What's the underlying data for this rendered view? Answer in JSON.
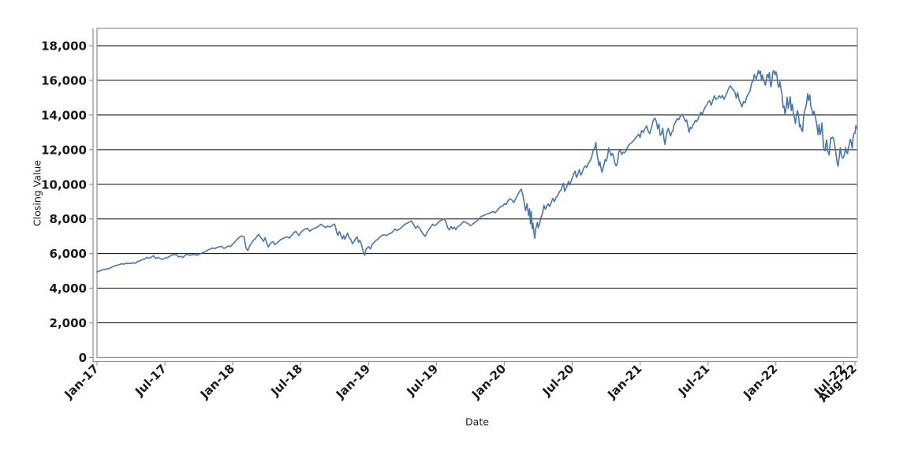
{
  "chart_data": {
    "type": "line",
    "title": "",
    "xlabel": "Date",
    "ylabel": "Closing Value",
    "xlim": [
      2017.0,
      2022.6
    ],
    "ylim": [
      0,
      19000
    ],
    "grid": "horizontal, black, at every 2000",
    "legend": "none",
    "colors": {
      "line": "#4575b2",
      "frame": "#959595",
      "gridline": "#000000",
      "tick_label": "#1a1a1a",
      "axis_title": "#1a1a1a",
      "background": "#ffffff"
    },
    "y_ticks": [
      {
        "v": 0,
        "label": "0"
      },
      {
        "v": 2000,
        "label": "2,000"
      },
      {
        "v": 4000,
        "label": "4,000"
      },
      {
        "v": 6000,
        "label": "6,000"
      },
      {
        "v": 8000,
        "label": "8,000"
      },
      {
        "v": 10000,
        "label": "10,000"
      },
      {
        "v": 12000,
        "label": "12,000"
      },
      {
        "v": 14000,
        "label": "14,000"
      },
      {
        "v": 16000,
        "label": "16,000"
      },
      {
        "v": 18000,
        "label": "18,000"
      }
    ],
    "x_ticks": [
      {
        "t": 2017.0,
        "label": "Jan-17"
      },
      {
        "t": 2017.5,
        "label": "Jul-17"
      },
      {
        "t": 2018.0,
        "label": "Jan-18"
      },
      {
        "t": 2018.5,
        "label": "Jul-18"
      },
      {
        "t": 2019.0,
        "label": "Jan-19"
      },
      {
        "t": 2019.5,
        "label": "Jul-19"
      },
      {
        "t": 2020.0,
        "label": "Jan-20"
      },
      {
        "t": 2020.5,
        "label": "Jul-20"
      },
      {
        "t": 2021.0,
        "label": "Jan-21"
      },
      {
        "t": 2021.5,
        "label": "Jul-21"
      },
      {
        "t": 2022.0,
        "label": "Jan-22"
      },
      {
        "t": 2022.5,
        "label": "Jul-22"
      },
      {
        "t": 2022.583,
        "label": "Aug-22"
      }
    ],
    "series": {
      "name": "closing-value",
      "start_year": 2017,
      "note": "samples_by_month[i] holds closing-value samples spread evenly across month i (0 = Jan 2017); final month spreads to xlim end",
      "samples_by_month": [
        [
          4940,
          4990,
          5040,
          5090,
          5100
        ],
        [
          5120,
          5180,
          5250,
          5300,
          5330
        ],
        [
          5370,
          5410,
          5390,
          5440,
          5430
        ],
        [
          5430,
          5470,
          5440,
          5550,
          5580
        ],
        [
          5650,
          5680,
          5780,
          5730,
          5790
        ],
        [
          5880,
          5710,
          5790,
          5700,
          5660
        ],
        [
          5740,
          5760,
          5830,
          5920,
          5930
        ],
        [
          5950,
          5810,
          5840,
          5770,
          5910
        ],
        [
          5960,
          5900,
          5930,
          5960,
          5900
        ],
        [
          5950,
          6010,
          6070,
          6110,
          6210
        ],
        [
          6260,
          6320,
          6280,
          6350,
          6390
        ],
        [
          6420,
          6300,
          6350,
          6440,
          6400
        ],
        [
          6550,
          6690,
          6830,
          6950,
          7020
        ],
        [
          6950,
          6340,
          6170,
          6440,
          6610,
          6780
        ],
        [
          6860,
          7000,
          7110,
          6960,
          6860,
          6700,
          6920
        ],
        [
          6600,
          6380,
          6550,
          6640,
          6690,
          6510,
          6590
        ],
        [
          6650,
          6790,
          6860,
          6920,
          6970
        ],
        [
          6890,
          7010,
          7120,
          7220,
          7290,
          7140,
          7050
        ],
        [
          7210,
          7330,
          7420,
          7460,
          7290
        ],
        [
          7390,
          7450,
          7500,
          7590,
          7690
        ],
        [
          7600,
          7500,
          7590,
          7530,
          7640
        ],
        [
          7700,
          7480,
          7160,
          7050,
          7270,
          7180,
          6960,
          6850,
          7040,
          6830
        ],
        [
          6960,
          7180,
          6930,
          6820,
          6570,
          6690,
          6870
        ],
        [
          6950,
          6650,
          6760,
          6620,
          6340,
          6060,
          5900,
          6250,
          6330
        ],
        [
          6400,
          6270,
          6540,
          6660,
          6760,
          6830
        ],
        [
          6950,
          7060,
          7090,
          7040,
          7140
        ],
        [
          7180,
          7280,
          7420,
          7330,
          7390,
          7460
        ],
        [
          7570,
          7680,
          7750,
          7820,
          7880
        ],
        [
          7650,
          7450,
          7590,
          7480,
          7300,
          7120
        ],
        [
          6990,
          7210,
          7390,
          7540,
          7690,
          7610
        ],
        [
          7680,
          7800,
          7890,
          7950,
          7990,
          7840
        ],
        [
          7480,
          7370,
          7560,
          7430,
          7530,
          7380,
          7540
        ],
        [
          7600,
          7700,
          7860,
          7810,
          7730
        ],
        [
          7610,
          7680,
          7770,
          7850,
          7940,
          8060
        ],
        [
          8150,
          8210,
          8270,
          8310,
          8360
        ],
        [
          8440,
          8350,
          8460,
          8580,
          8710,
          8730
        ],
        [
          8870,
          8830,
          9060,
          9170,
          9090,
          8950
        ],
        [
          9150,
          9320,
          9470,
          9610,
          9720,
          9440,
          8970,
          8460
        ],
        [
          8880,
          8540,
          8190,
          8580,
          7720,
          8440,
          7430,
          7750,
          7210,
          6870,
          7420,
          7580,
          7810
        ],
        [
          7490,
          7760,
          8090,
          8330,
          8790,
          8560,
          8740,
          8870
        ],
        [
          8720,
          8940,
          9180,
          9000,
          9230,
          9340,
          9560
        ],
        [
          9660,
          9870,
          10060,
          9590,
          9740,
          9910,
          10160,
          9950,
          10160
        ],
        [
          10340,
          10590,
          10760,
          10390,
          10580,
          10850,
          10530,
          10660
        ],
        [
          10910,
          11060,
          10970,
          11210,
          11330,
          11560,
          11950
        ],
        [
          12110,
          12420,
          11810,
          11460,
          11070,
          11290,
          10940,
          10690,
          10910,
          11160,
          11420
        ],
        [
          11330,
          11560,
          12090,
          11860,
          11660,
          11780,
          11550,
          11210,
          11060
        ],
        [
          11240,
          11890,
          11940,
          11720,
          11850,
          11820,
          11910,
          12110
        ],
        [
          12260,
          12340,
          12410,
          12470,
          12580,
          12710,
          12780,
          12890
        ],
        [
          12700,
          13110,
          12990,
          13200,
          13370,
          13070,
          12930
        ],
        [
          13250,
          13570,
          13760,
          13810,
          13600,
          13210,
          13480,
          12830,
          12910
        ],
        [
          13240,
          12670,
          12300,
          12790,
          13060,
          13230,
          12960,
          12790,
          13010,
          13090
        ],
        [
          13440,
          13600,
          13790,
          13740,
          13940,
          14040,
          13860
        ],
        [
          13630,
          13720,
          13360,
          13000,
          13290,
          13220,
          13410,
          13530,
          13690
        ],
        [
          13620,
          13770,
          13990,
          14160,
          14050,
          14270,
          14450,
          14560
        ],
        [
          14730,
          14830,
          14560,
          14840,
          15110,
          14900,
          14960
        ],
        [
          15110,
          14990,
          15130,
          14910,
          15130,
          15330,
          15580
        ],
        [
          15680,
          15530,
          15440,
          15330,
          14980,
          15300,
          14870,
          14690
        ],
        [
          14470,
          14780,
          14700,
          15050,
          15220,
          15360,
          15850
        ],
        [
          15970,
          16340,
          16200,
          16080,
          16310,
          16570,
          16380,
          16530,
          16030,
          16310,
          16000
        ],
        [
          15880,
          15710,
          15960,
          16320,
          16330,
          16140,
          16460,
          15860,
          15630,
          15970,
          16400,
          16570,
          16480,
          16320
        ],
        [
          16500,
          16280,
          15770,
          15590,
          15910,
          15500,
          15210,
          14440,
          14510,
          14000,
          14450
        ],
        [
          15020,
          14390,
          14690,
          15050,
          14250,
          14620,
          14130,
          13880,
          13510,
          13970,
          14240
        ],
        [
          14040,
          13320,
          13440,
          13130,
          13050,
          13960,
          14220,
          14420,
          14750,
          15240,
          14840
        ],
        [
          15160,
          14500,
          14330,
          13990,
          14220,
          14010,
          13720,
          13360,
          12870,
          13460,
          12860
        ],
        [
          13080,
          13540,
          12850,
          12190,
          11970,
          11930,
          12390,
          12560,
          11930,
          11840,
          11690,
          12280,
          12680,
          12640
        ],
        [
          12720,
          12650,
          12270,
          11830,
          11290,
          11040,
          11550,
          12110,
          11640,
          11500
        ],
        [
          11590,
          11780,
          12110,
          11860,
          11770,
          12100,
          12320,
          12600,
          12400,
          12090,
          12720,
          12950
        ],
        [
          12940,
          13380,
          13250
        ]
      ]
    }
  }
}
